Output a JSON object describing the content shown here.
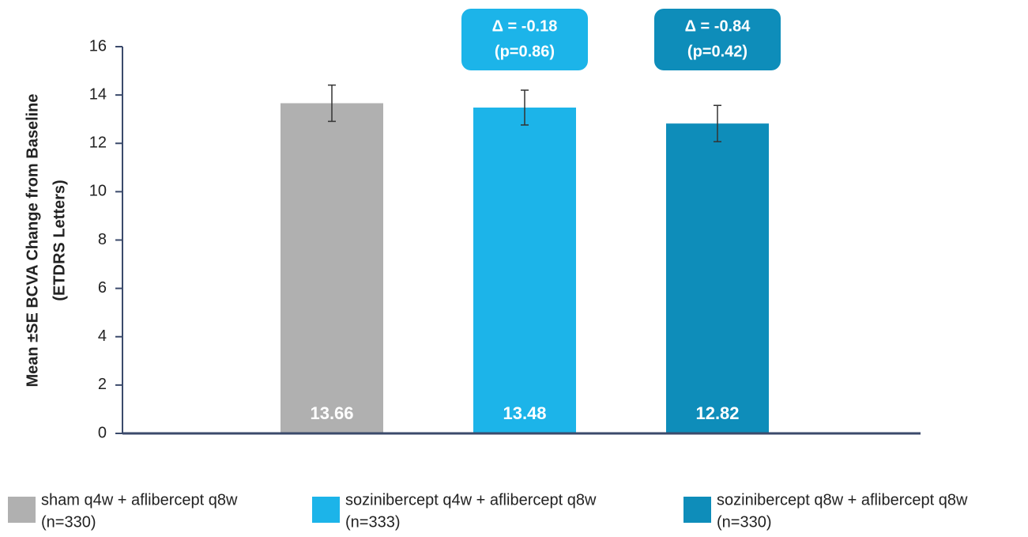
{
  "chart_data": {
    "type": "bar",
    "ylabel": [
      "Mean ±SE BCVA Change from Baseline",
      "(ETDRS Letters)"
    ],
    "ylim": [
      0,
      16
    ],
    "yticks": [
      0,
      2,
      4,
      6,
      8,
      10,
      12,
      14,
      16
    ],
    "series": [
      {
        "name": "sham q4w + aflibercept q8w",
        "n_label": "(n=330)",
        "color": "#b0b0b0",
        "values": [
          13.66
        ],
        "errors": [
          0.75
        ]
      },
      {
        "name": "sozinibercept q4w + aflibercept q8w",
        "n_label": "(n=333)",
        "color": "#1cb4e9",
        "values": [
          13.48
        ],
        "errors": [
          0.72
        ],
        "annotation": [
          "Δ = -0.18",
          "(p=0.86)"
        ]
      },
      {
        "name": "sozinibercept q8w + aflibercept q8w",
        "n_label": "(n=330)",
        "color": "#0e8dba",
        "values": [
          12.82
        ],
        "errors": [
          0.75
        ],
        "annotation": [
          "Δ = -0.84",
          "(p=0.42)"
        ]
      }
    ]
  }
}
